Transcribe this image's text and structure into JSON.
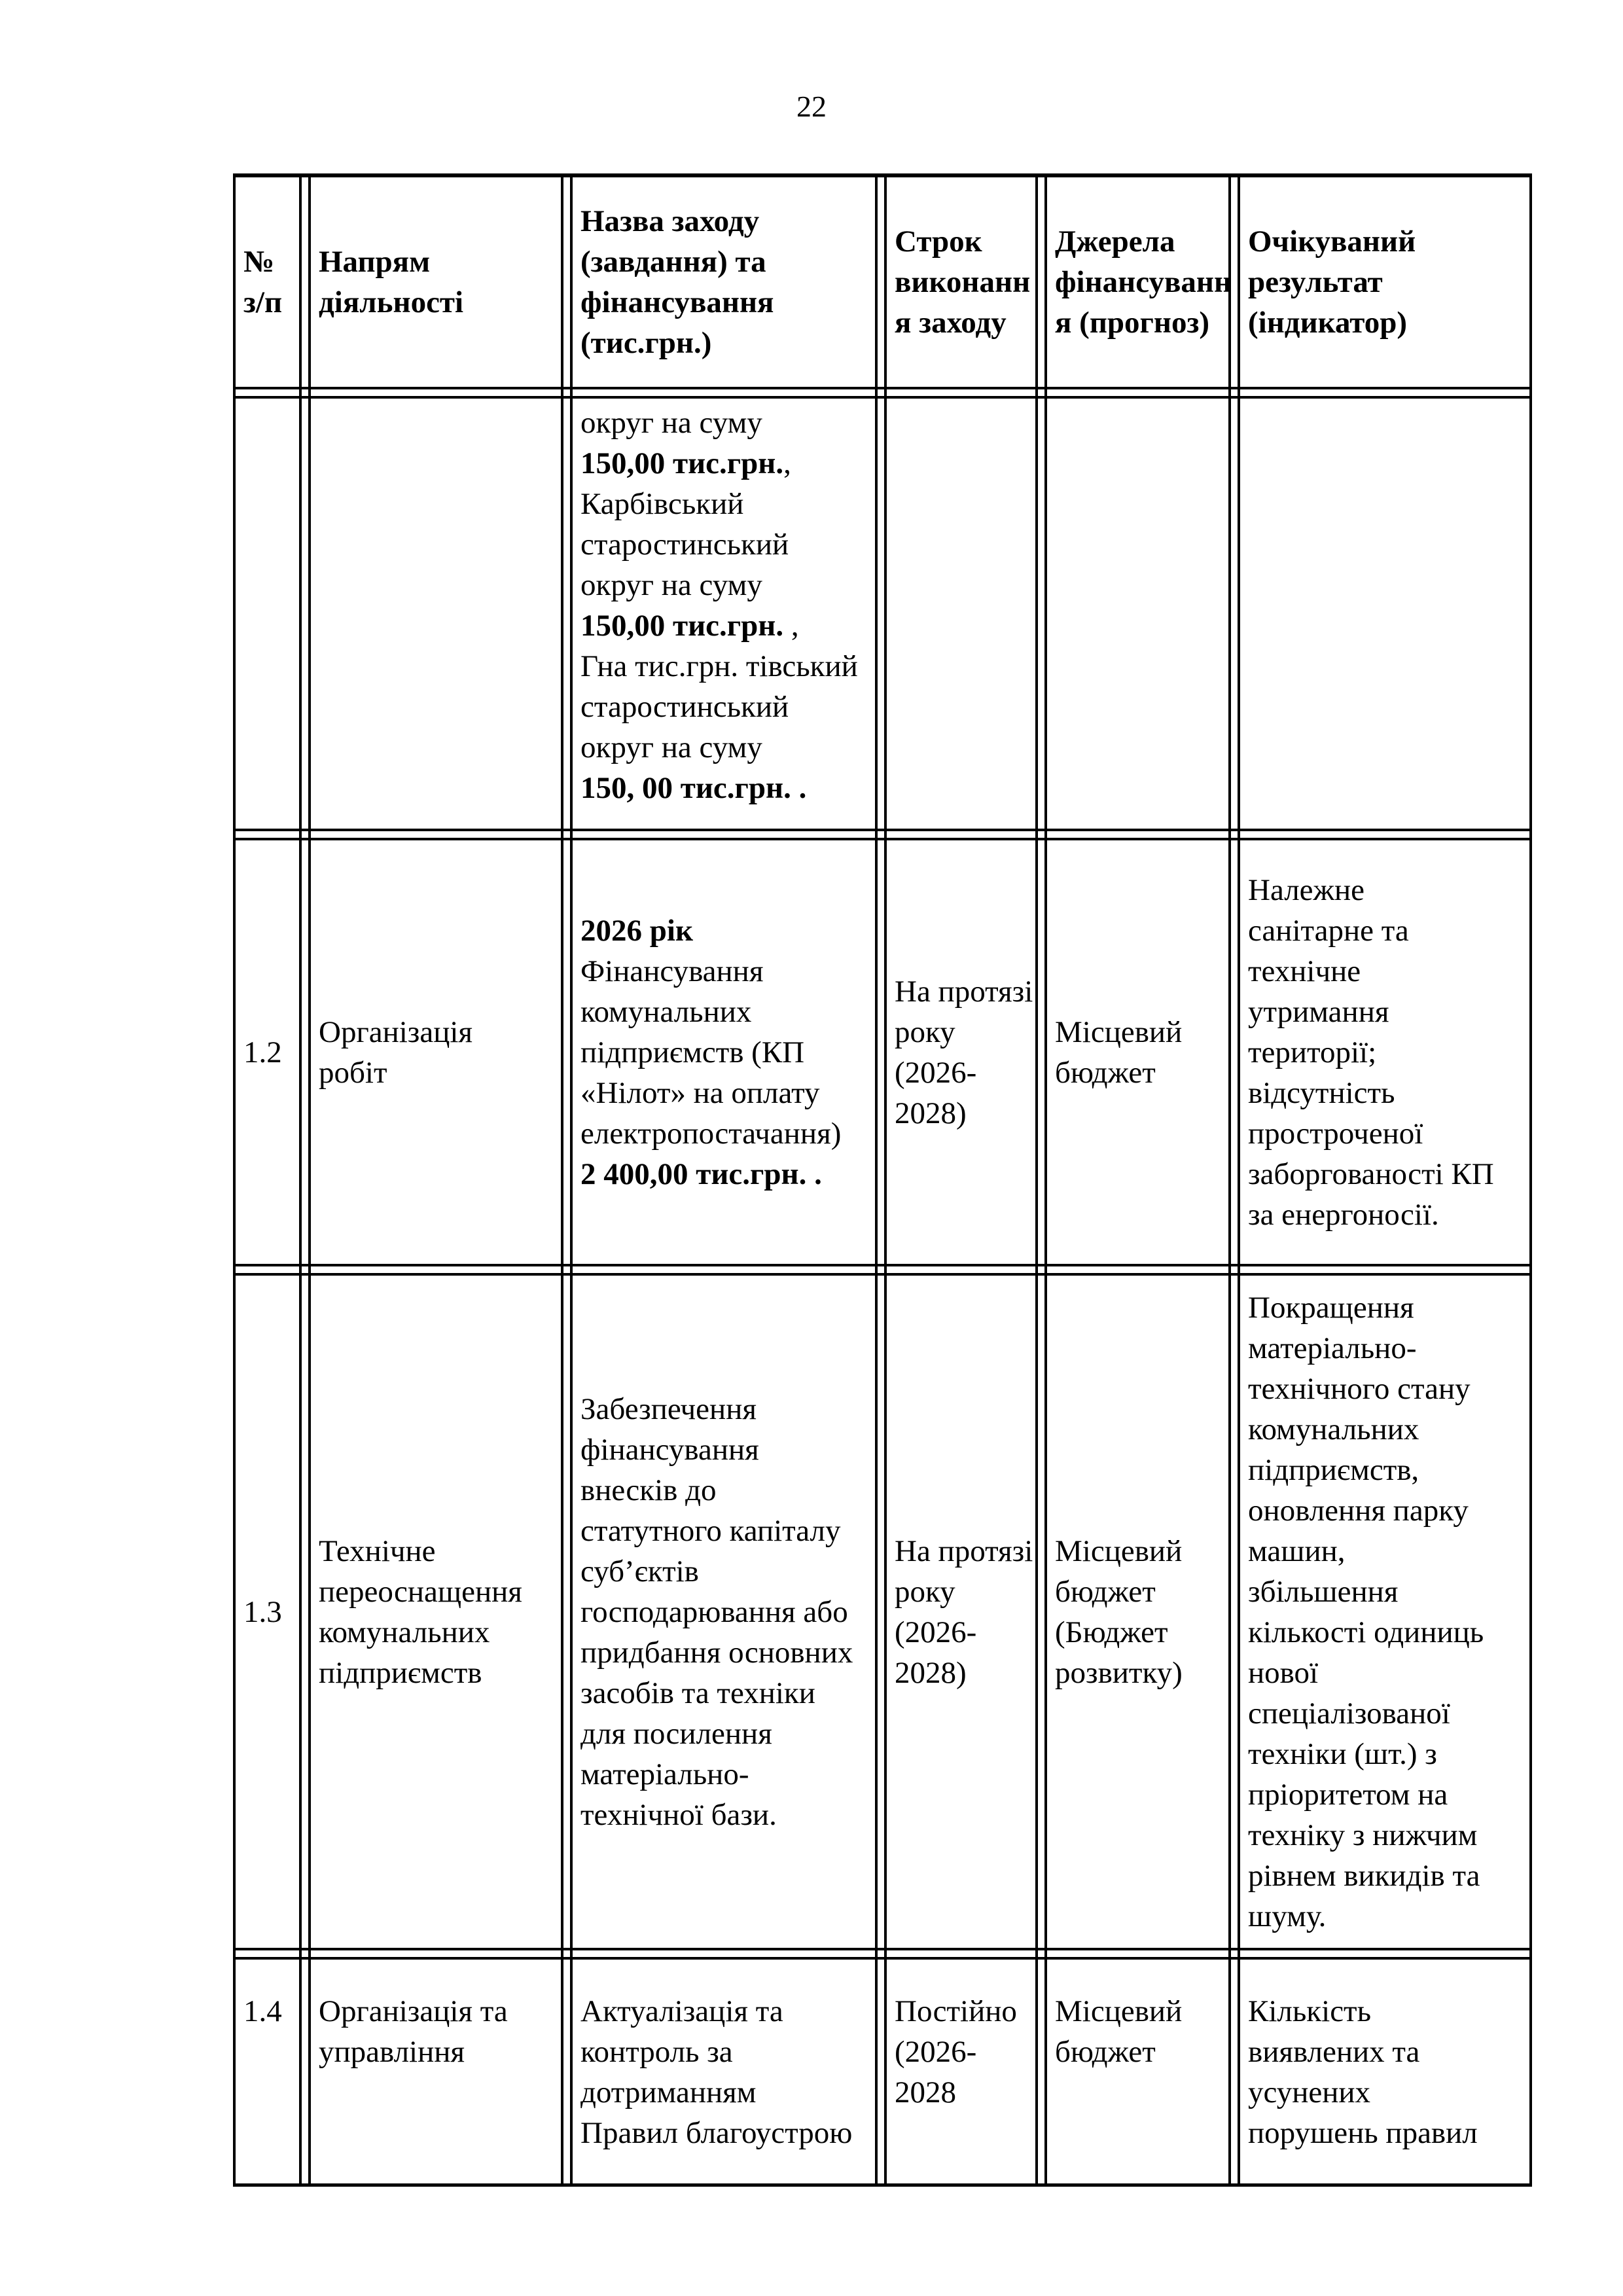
{
  "page": {
    "number": "22"
  },
  "table": {
    "headers": [
      {
        "text": "№\nз/п"
      },
      {
        "text": "Напрям\nдіяльності"
      },
      {
        "text": "Назва заходу\n(завдання) та\nфінансування\n(тис.грн.)"
      },
      {
        "text": "Строк\nвиконанн\nя заходу"
      },
      {
        "text": "Джерела\nфінансуванн\nя (прогноз)"
      },
      {
        "text": "Очікуваний\nрезультат\n(індикатор)"
      }
    ],
    "rows": [
      {
        "cells": [
          [],
          [],
          [
            [
              {
                "t": "округ на суму",
                "b": false
              }
            ],
            [
              {
                "t": "150,00 тис.грн.",
                "b": true
              },
              {
                "t": ",",
                "b": false
              }
            ],
            [
              {
                "t": "Карбівський",
                "b": false
              }
            ],
            [
              {
                "t": "старостинський",
                "b": false
              }
            ],
            [
              {
                "t": "округ на суму",
                "b": false
              }
            ],
            [
              {
                "t": "150,00 тис.грн.",
                "b": true
              },
              {
                "t": " ,",
                "b": false
              }
            ],
            [
              {
                "t": "Гна тис.грн. тівський",
                "b": false
              }
            ],
            [
              {
                "t": "старостинський",
                "b": false
              }
            ],
            [
              {
                "t": "округ на суму",
                "b": false
              }
            ],
            [
              {
                "t": "150, 00 тис.грн. .",
                "b": true
              }
            ]
          ],
          [],
          [],
          []
        ]
      },
      {
        "cells": [
          [
            [
              {
                "t": "1.2",
                "b": false
              }
            ]
          ],
          [
            [
              {
                "t": "Організація",
                "b": false
              }
            ],
            [
              {
                "t": "робіт",
                "b": false
              }
            ]
          ],
          [
            [
              {
                "t": "2026 рік",
                "b": true
              }
            ],
            [
              {
                "t": "Фінансування",
                "b": false
              }
            ],
            [
              {
                "t": "комунальних",
                "b": false
              }
            ],
            [
              {
                "t": "підприємств (КП",
                "b": false
              }
            ],
            [
              {
                "t": "«Нілот» на оплату",
                "b": false
              }
            ],
            [
              {
                "t": "електропостачання)",
                "b": false
              }
            ],
            [
              {
                "t": "2 400,00 тис.грн. .",
                "b": true
              }
            ]
          ],
          [
            [
              {
                "t": "На протязі",
                "b": false
              }
            ],
            [
              {
                "t": "року",
                "b": false
              }
            ],
            [
              {
                "t": "(2026-",
                "b": false
              }
            ],
            [
              {
                "t": "2028)",
                "b": false
              }
            ]
          ],
          [
            [
              {
                "t": "Місцевий",
                "b": false
              }
            ],
            [
              {
                "t": "бюджет",
                "b": false
              }
            ]
          ],
          [
            [
              {
                "t": "Належне",
                "b": false
              }
            ],
            [
              {
                "t": "санітарне та",
                "b": false
              }
            ],
            [
              {
                "t": "технічне",
                "b": false
              }
            ],
            [
              {
                "t": "утримання",
                "b": false
              }
            ],
            [
              {
                "t": "території;",
                "b": false
              }
            ],
            [
              {
                "t": "відсутність",
                "b": false
              }
            ],
            [
              {
                "t": "простроченої",
                "b": false
              }
            ],
            [
              {
                "t": "заборгованості КП",
                "b": false
              }
            ],
            [
              {
                "t": "за енергоносії.",
                "b": false
              }
            ]
          ]
        ]
      },
      {
        "cells": [
          [
            [
              {
                "t": "1.3",
                "b": false
              }
            ]
          ],
          [
            [
              {
                "t": "Технічне",
                "b": false
              }
            ],
            [
              {
                "t": "переоснащення",
                "b": false
              }
            ],
            [
              {
                "t": "комунальних",
                "b": false
              }
            ],
            [
              {
                "t": "підприємств",
                "b": false
              }
            ]
          ],
          [
            [
              {
                "t": "Забезпечення",
                "b": false
              }
            ],
            [
              {
                "t": "фінансування",
                "b": false
              }
            ],
            [
              {
                "t": "внесків до",
                "b": false
              }
            ],
            [
              {
                "t": "статутного капіталу",
                "b": false
              }
            ],
            [
              {
                "t": "суб’єктів",
                "b": false
              }
            ],
            [
              {
                "t": "господарювання або",
                "b": false
              }
            ],
            [
              {
                "t": "придбання основних",
                "b": false
              }
            ],
            [
              {
                "t": "засобів та техніки",
                "b": false
              }
            ],
            [
              {
                "t": "для посилення",
                "b": false
              }
            ],
            [
              {
                "t": "матеріально-",
                "b": false
              }
            ],
            [
              {
                "t": "технічної бази.",
                "b": false
              }
            ]
          ],
          [
            [
              {
                "t": "На протязі",
                "b": false
              }
            ],
            [
              {
                "t": "року",
                "b": false
              }
            ],
            [
              {
                "t": "(2026-",
                "b": false
              }
            ],
            [
              {
                "t": "2028)",
                "b": false
              }
            ]
          ],
          [
            [
              {
                "t": "Місцевий",
                "b": false
              }
            ],
            [
              {
                "t": "бюджет",
                "b": false
              }
            ],
            [
              {
                "t": "(Бюджет",
                "b": false
              }
            ],
            [
              {
                "t": "розвитку)",
                "b": false
              }
            ]
          ],
          [
            [
              {
                "t": "Покращення",
                "b": false
              }
            ],
            [
              {
                "t": "матеріально-",
                "b": false
              }
            ],
            [
              {
                "t": "технічного стану",
                "b": false
              }
            ],
            [
              {
                "t": "комунальних",
                "b": false
              }
            ],
            [
              {
                "t": "підприємств,",
                "b": false
              }
            ],
            [
              {
                "t": "оновлення парку",
                "b": false
              }
            ],
            [
              {
                "t": "машин,",
                "b": false
              }
            ],
            [
              {
                "t": "збільшення",
                "b": false
              }
            ],
            [
              {
                "t": "кількості одиниць",
                "b": false
              }
            ],
            [
              {
                "t": "нової",
                "b": false
              }
            ],
            [
              {
                "t": "спеціалізованої",
                "b": false
              }
            ],
            [
              {
                "t": "техніки (шт.) з",
                "b": false
              }
            ],
            [
              {
                "t": "пріоритетом на",
                "b": false
              }
            ],
            [
              {
                "t": "техніку з нижчим",
                "b": false
              }
            ],
            [
              {
                "t": "рівнем викидів та",
                "b": false
              }
            ],
            [
              {
                "t": "шуму.",
                "b": false
              }
            ]
          ]
        ]
      },
      {
        "cells": [
          [
            [
              {
                "t": "1.4",
                "b": false
              }
            ]
          ],
          [
            [
              {
                "t": "Організація та",
                "b": false
              }
            ],
            [
              {
                "t": "управління",
                "b": false
              }
            ]
          ],
          [
            [
              {
                "t": "Актуалізація та",
                "b": false
              }
            ],
            [
              {
                "t": "контроль за",
                "b": false
              }
            ],
            [
              {
                "t": "дотриманням",
                "b": false
              }
            ],
            [
              {
                "t": "Правил благоустрою",
                "b": false
              }
            ]
          ],
          [
            [
              {
                "t": "Постійно",
                "b": false
              }
            ],
            [
              {
                "t": "(2026-",
                "b": false
              }
            ],
            [
              {
                "t": "2028",
                "b": false
              }
            ]
          ],
          [
            [
              {
                "t": "Місцевий",
                "b": false
              }
            ],
            [
              {
                "t": "бюджет",
                "b": false
              }
            ]
          ],
          [
            [
              {
                "t": "Кількість",
                "b": false
              }
            ],
            [
              {
                "t": "виявлених та",
                "b": false
              }
            ],
            [
              {
                "t": "усунених",
                "b": false
              }
            ],
            [
              {
                "t": "порушень правил",
                "b": false
              }
            ]
          ]
        ]
      }
    ]
  }
}
